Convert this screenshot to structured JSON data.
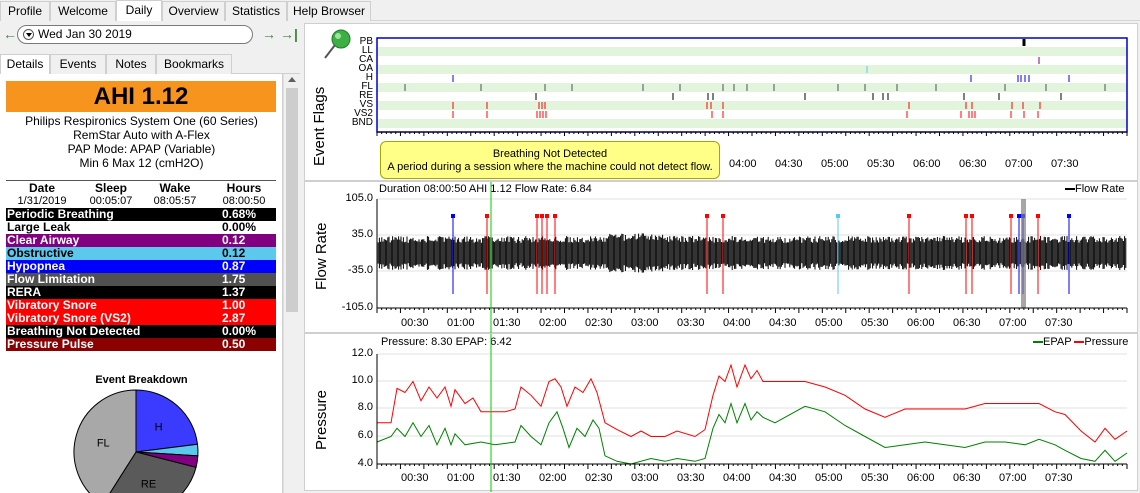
{
  "top_tabs": [
    {
      "label": "Profile",
      "active": false
    },
    {
      "label": "Welcome",
      "active": false
    },
    {
      "label": "Daily",
      "active": true
    },
    {
      "label": "Overview",
      "active": false
    },
    {
      "label": "Statistics",
      "active": false
    },
    {
      "label": "Help Browser",
      "active": false
    }
  ],
  "date_nav": {
    "prev": "←",
    "date": "Wed Jan 30 2019",
    "next": "→",
    "last": "→|"
  },
  "sub_tabs": [
    {
      "label": "Details",
      "active": true
    },
    {
      "label": "Events",
      "active": false
    },
    {
      "label": "Notes",
      "active": false
    },
    {
      "label": "Bookmarks",
      "active": false
    }
  ],
  "ahi": {
    "label": "AHI 1.12",
    "color": "#f7941d"
  },
  "device": {
    "line1": "Philips Respironics System One (60 Series)",
    "line2": "RemStar Auto with A-Flex",
    "line3": "PAP Mode: APAP (Variable)",
    "line4": "Min 6 Max 12 (cmH2O)"
  },
  "session_summary": {
    "headers": [
      "Date",
      "Sleep",
      "Wake",
      "Hours"
    ],
    "values": [
      "1/31/2019",
      "00:05:07",
      "08:05:57",
      "08:00:50"
    ]
  },
  "events": [
    {
      "name": "Periodic Breathing",
      "value": "0.68%",
      "bg": "#000000",
      "fg": "#ffffff"
    },
    {
      "name": "Large Leak",
      "value": "0.00%",
      "bg": "#ffffff",
      "fg": "#000000"
    },
    {
      "name": "Clear Airway",
      "value": "0.12",
      "bg": "#800080",
      "fg": "#ffffff"
    },
    {
      "name": "Obstructive",
      "value": "0.12",
      "bg": "#5bc8ec",
      "fg": "#000000"
    },
    {
      "name": "Hypopnea",
      "value": "0.87",
      "bg": "#0000ff",
      "fg": "#ffffff"
    },
    {
      "name": "Flow Limitation",
      "value": "1.75",
      "bg": "#505050",
      "fg": "#ffffff"
    },
    {
      "name": "RERA",
      "value": "1.37",
      "bg": "#000000",
      "fg": "#ffffff"
    },
    {
      "name": "Vibratory Snore",
      "value": "1.00",
      "bg": "#ff0000",
      "fg": "#ffffff"
    },
    {
      "name": "Vibratory Snore (VS2)",
      "value": "2.87",
      "bg": "#ff0000",
      "fg": "#ffffff"
    },
    {
      "name": "Breathing Not Detected",
      "value": "0.00%",
      "bg": "#000000",
      "fg": "#ffffff"
    },
    {
      "name": "Pressure Pulse",
      "value": "0.50",
      "bg": "#8b0000",
      "fg": "#ffffff"
    }
  ],
  "breakdown": {
    "title": "Event Breakdown",
    "slices": [
      {
        "label": "H",
        "fraction": 0.23,
        "color": "#3b3bff"
      },
      {
        "label": "",
        "fraction": 0.03,
        "color": "#5bc8ec"
      },
      {
        "label": "",
        "fraction": 0.03,
        "color": "#800080"
      },
      {
        "label": "RE",
        "fraction": 0.3,
        "color": "#5a5a5a"
      },
      {
        "label": "FL",
        "fraction": 0.41,
        "color": "#a8a8a8"
      }
    ]
  },
  "event_flags": {
    "ylabel": "Event Flags",
    "rows": [
      "PB",
      "LL",
      "CA",
      "OA",
      "H",
      "FL",
      "RE",
      "VS",
      "VS2",
      "BND"
    ],
    "tooltip_title": "Breathing Not Detected",
    "tooltip_text": "A period during a session where the machine could not detect flow.",
    "xticks": [
      "04:00",
      "04:30",
      "05:00",
      "05:30",
      "06:00",
      "06:30",
      "07:00",
      "07:30"
    ]
  },
  "flow_rate": {
    "ylabel": "Flow Rate",
    "title": "Duration 08:00:50 AHI 1.12 Flow Rate: 6.84",
    "legend": "Flow Rate",
    "yticks": [
      "105.0",
      "35.0",
      "-35.0",
      "-105.0"
    ],
    "xticks": [
      "00:30",
      "01:00",
      "01:30",
      "02:00",
      "02:30",
      "03:00",
      "03:30",
      "04:00",
      "04:30",
      "05:00",
      "05:30",
      "06:00",
      "06:30",
      "07:00",
      "07:30"
    ]
  },
  "pressure": {
    "ylabel": "Pressure",
    "title": "Pressure: 8.30 EPAP: 6.42",
    "legend_epap": "EPAP",
    "legend_pressure": "Pressure",
    "epap_color": "#008000",
    "pressure_color": "#ff0000",
    "yticks": [
      "12.0",
      "10.0",
      "8.0",
      "6.0",
      "4.0"
    ],
    "xticks": [
      "00:30",
      "01:00",
      "01:30",
      "02:00",
      "02:30",
      "03:00",
      "03:30",
      "04:00",
      "04:30",
      "05:00",
      "05:30",
      "06:00",
      "06:30",
      "07:00",
      "07:30"
    ]
  }
}
